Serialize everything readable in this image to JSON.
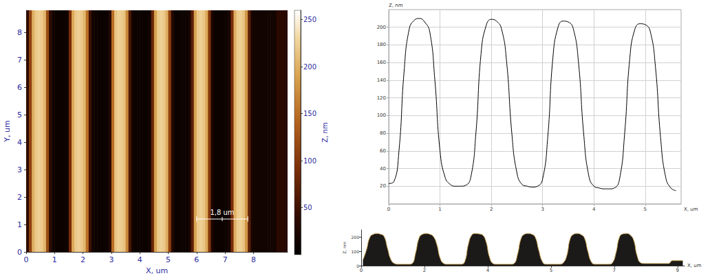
{
  "chart_data": [
    {
      "type": "heatmap",
      "x_label": "X, um",
      "y_label": "Y, um",
      "xlim": [
        0,
        9.2
      ],
      "ylim": [
        0,
        8.8
      ],
      "xticks": [
        0,
        1,
        2,
        3,
        4,
        5,
        6,
        7,
        8
      ],
      "yticks": [
        0,
        1,
        2,
        3,
        4,
        5,
        6,
        7,
        8
      ],
      "x_edges": [
        0,
        0.1,
        0.2,
        0.3,
        0.4,
        0.5,
        0.6,
        0.7,
        0.8,
        0.9,
        1,
        1.1,
        1.2,
        1.3,
        1.4,
        1.5,
        1.6,
        1.7,
        1.8,
        1.9,
        2,
        2.1,
        2.2,
        2.3,
        2.4,
        2.5,
        2.6,
        2.7,
        2.8,
        2.9,
        3,
        3.1,
        3.2,
        3.3,
        3.4,
        3.5,
        3.6,
        3.7,
        3.8,
        3.9,
        4,
        4.1,
        4.2,
        4.3,
        4.4,
        4.5,
        4.6,
        4.7,
        4.8,
        4.9,
        5,
        5.1,
        5.2,
        5.3,
        5.4,
        5.5,
        5.6,
        5.7,
        5.8,
        5.9,
        6,
        6.1,
        6.2,
        6.3,
        6.4,
        6.5,
        6.6,
        6.7,
        6.8,
        6.9,
        7,
        7.1,
        7.2,
        7.3,
        7.4,
        7.5,
        7.6,
        7.7,
        7.8,
        7.9,
        8,
        8.1,
        8.2,
        8.3,
        8.4,
        8.5,
        8.6,
        8.7,
        8.8,
        8.9,
        9,
        9.1,
        9.2
      ],
      "z": [
        40,
        110,
        200,
        220,
        225,
        220,
        205,
        120,
        40,
        15,
        10,
        10,
        10,
        10,
        15,
        90,
        195,
        220,
        225,
        220,
        205,
        150,
        50,
        15,
        10,
        10,
        10,
        10,
        10,
        30,
        150,
        215,
        225,
        222,
        215,
        170,
        60,
        15,
        10,
        10,
        10,
        10,
        10,
        15,
        80,
        190,
        220,
        225,
        220,
        200,
        110,
        30,
        10,
        10,
        10,
        10,
        10,
        20,
        70,
        190,
        220,
        225,
        218,
        195,
        100,
        25,
        10,
        10,
        10,
        10,
        10,
        20,
        90,
        200,
        222,
        225,
        215,
        180,
        70,
        20,
        15,
        15,
        15,
        15,
        15,
        15,
        15,
        15,
        35,
        35,
        35,
        35
      ],
      "colorbar": {
        "range": [
          0,
          260
        ],
        "ticks": [
          50,
          100,
          150,
          200,
          250
        ],
        "label": "Z, nm"
      },
      "scale_bar": {
        "label": "1,8 um",
        "length": 1.8,
        "x": 6.0,
        "y": 1.2
      }
    },
    {
      "type": "line",
      "x_label": "X, um",
      "y_label": "Z, nm",
      "xlim": [
        0,
        5.7
      ],
      "ylim": [
        0,
        220
      ],
      "xticks": [
        0,
        1,
        2,
        3,
        4,
        5
      ],
      "yticks": [
        20,
        40,
        60,
        80,
        100,
        120,
        140,
        160,
        180,
        200
      ],
      "grid": true,
      "color": "#000000",
      "x": [
        0,
        0.1,
        0.2,
        0.3,
        0.4,
        0.5,
        0.6,
        0.7,
        0.8,
        0.9,
        1,
        1.1,
        1.2,
        1.3,
        1.4,
        1.5,
        1.6,
        1.7,
        1.8,
        1.9,
        2,
        2.1,
        2.2,
        2.3,
        2.4,
        2.5,
        2.6,
        2.7,
        2.8,
        2.9,
        3,
        3.1,
        3.2,
        3.3,
        3.4,
        3.5,
        3.6,
        3.7,
        3.8,
        3.9,
        4,
        4.1,
        4.2,
        4.3,
        4.4,
        4.5,
        4.6,
        4.7,
        4.8,
        4.9,
        5,
        5.1,
        5.2,
        5.3,
        5.4,
        5.5,
        5.6
      ],
      "values": [
        23,
        25,
        60,
        150,
        198,
        208,
        210,
        206,
        195,
        140,
        60,
        30,
        22,
        20,
        20,
        21,
        30,
        80,
        170,
        202,
        209,
        207,
        198,
        160,
        80,
        35,
        22,
        20,
        19,
        20,
        28,
        75,
        165,
        200,
        207,
        206,
        198,
        160,
        80,
        32,
        20,
        18,
        17,
        17,
        18,
        28,
        80,
        165,
        198,
        204,
        203,
        195,
        155,
        75,
        30,
        18,
        15
      ]
    },
    {
      "type": "area",
      "x_label": "X, um",
      "y_label": "Z, nm",
      "xlim": [
        0,
        9.2
      ],
      "ylim": [
        0,
        250
      ],
      "xticks": [
        0,
        {
          "value": 1.8,
          "label": "2"
        },
        {
          "value": 3.6,
          "label": "4"
        },
        {
          "value": 5.4,
          "label": "5"
        },
        {
          "value": 7.2,
          "label": "7"
        },
        9
      ],
      "yticks": [
        0,
        100,
        200
      ],
      "color": "#c8a050",
      "x": [
        0.05,
        0.15,
        0.25,
        0.35,
        0.45,
        0.55,
        0.65,
        0.75,
        0.85,
        0.95,
        1.05,
        1.15,
        1.25,
        1.35,
        1.45,
        1.55,
        1.65,
        1.75,
        1.85,
        1.95,
        2.05,
        2.15,
        2.25,
        2.35,
        2.45,
        2.55,
        2.65,
        2.75,
        2.85,
        2.95,
        3.05,
        3.15,
        3.25,
        3.35,
        3.45,
        3.55,
        3.65,
        3.75,
        3.85,
        3.95,
        4.05,
        4.15,
        4.25,
        4.35,
        4.45,
        4.55,
        4.65,
        4.75,
        4.85,
        4.95,
        5.05,
        5.15,
        5.25,
        5.35,
        5.45,
        5.55,
        5.65,
        5.75,
        5.85,
        5.95,
        6.05,
        6.15,
        6.25,
        6.35,
        6.45,
        6.55,
        6.65,
        6.75,
        6.85,
        6.95,
        7.05,
        7.15,
        7.25,
        7.35,
        7.45,
        7.55,
        7.65,
        7.75,
        7.85,
        7.95,
        8.05,
        8.15,
        8.25,
        8.35,
        8.45,
        8.55,
        8.65,
        8.75,
        8.85,
        8.95,
        9.05,
        9.15
      ],
      "values": [
        40,
        110,
        200,
        220,
        225,
        220,
        205,
        120,
        40,
        15,
        10,
        10,
        10,
        10,
        15,
        90,
        195,
        220,
        225,
        220,
        205,
        150,
        50,
        15,
        10,
        10,
        10,
        10,
        10,
        30,
        150,
        215,
        225,
        222,
        215,
        170,
        60,
        15,
        10,
        10,
        10,
        10,
        10,
        15,
        80,
        190,
        220,
        225,
        220,
        200,
        110,
        30,
        10,
        10,
        10,
        10,
        10,
        20,
        70,
        190,
        220,
        225,
        218,
        195,
        100,
        25,
        10,
        10,
        10,
        10,
        10,
        20,
        90,
        200,
        222,
        225,
        215,
        180,
        70,
        20,
        15,
        15,
        15,
        15,
        15,
        15,
        15,
        15,
        35,
        35,
        35,
        35
      ]
    }
  ]
}
